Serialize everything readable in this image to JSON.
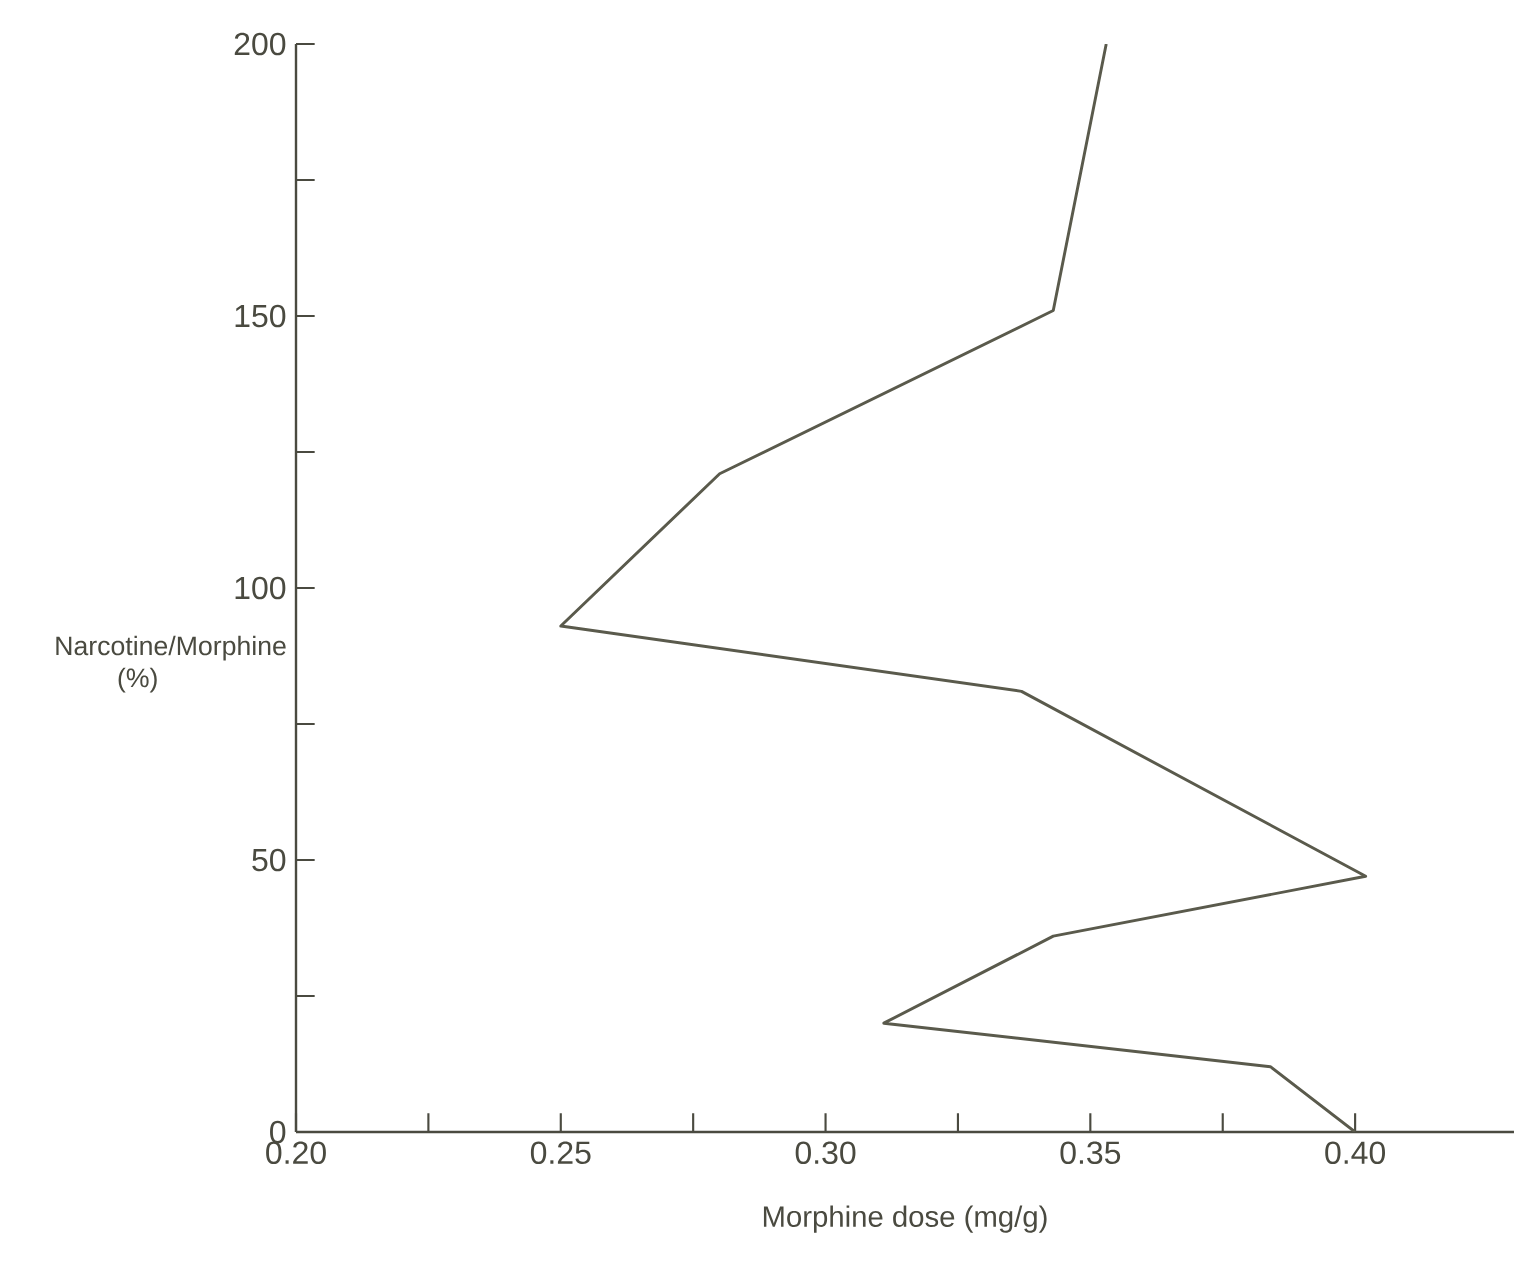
{
  "chart_data": {
    "type": "line",
    "xlabel": "Morphine dose (mg/g)",
    "ylabel": "Narcotine/Morphine (%)",
    "xlim": [
      0.2,
      0.43
    ],
    "ylim": [
      0,
      200
    ],
    "xticks": [
      {
        "value": 0.2,
        "label": "0.20"
      },
      {
        "value": 0.225,
        "label": null
      },
      {
        "value": 0.25,
        "label": "0.25"
      },
      {
        "value": 0.275,
        "label": null
      },
      {
        "value": 0.3,
        "label": "0.30"
      },
      {
        "value": 0.325,
        "label": null
      },
      {
        "value": 0.35,
        "label": "0.35"
      },
      {
        "value": 0.375,
        "label": null
      },
      {
        "value": 0.4,
        "label": "0.40"
      }
    ],
    "yticks": [
      0,
      {
        "value": 25,
        "label": null
      },
      50,
      {
        "value": 75,
        "label": null
      },
      100,
      {
        "value": 125,
        "label": null
      },
      150,
      {
        "value": 175,
        "label": null
      },
      200
    ],
    "series": [
      {
        "color": "#5a5a4c",
        "x": [
          0.4,
          0.384,
          0.311,
          0.343,
          0.402,
          0.337,
          0.25,
          0.28,
          0.343,
          0.353
        ],
        "values": [
          0,
          12,
          20,
          36,
          47,
          81,
          93,
          121,
          151,
          200
        ]
      }
    ],
    "marker": "none",
    "line_style": "solid"
  }
}
